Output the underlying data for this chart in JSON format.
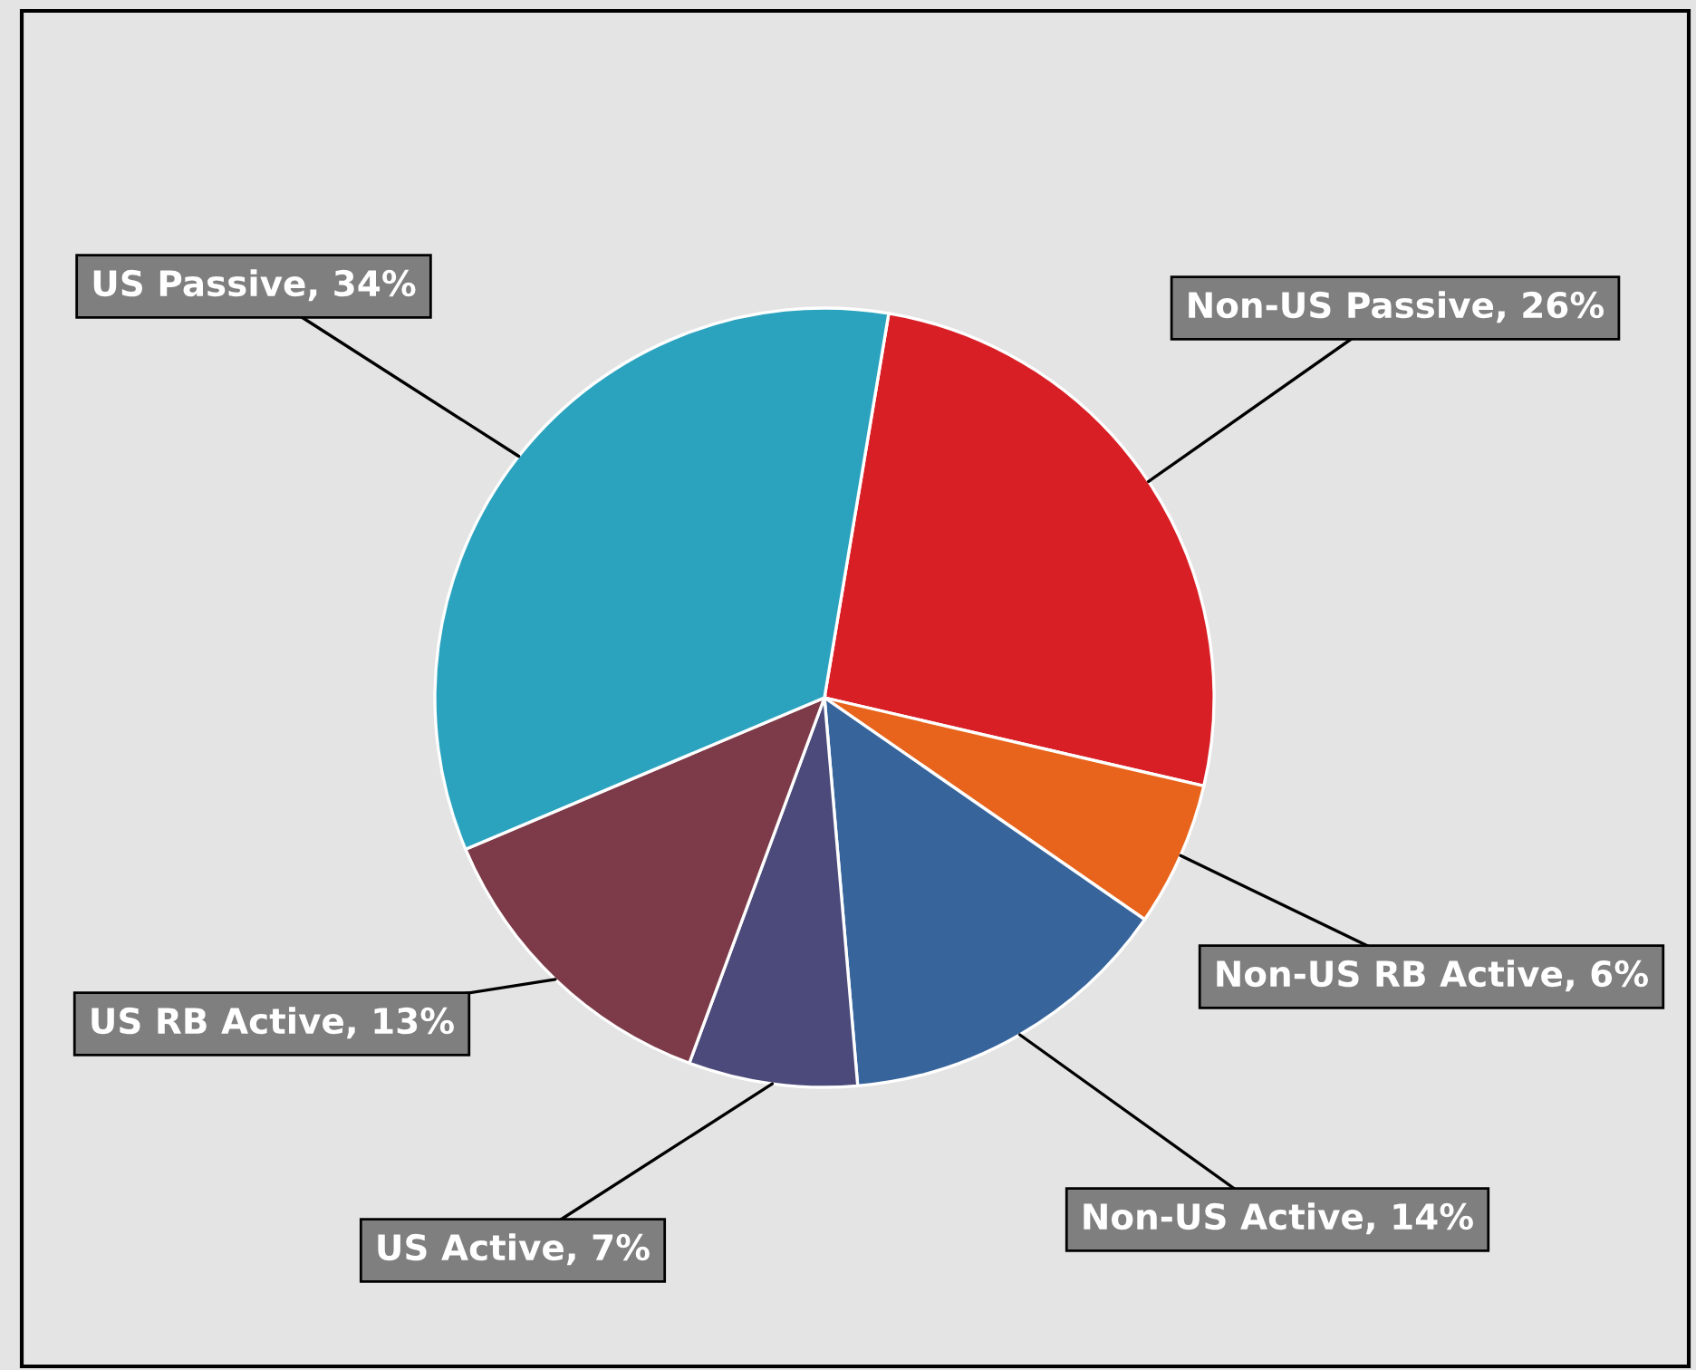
{
  "chart_data": {
    "type": "pie",
    "categories": [
      "Non-US Passive",
      "Non-US RB Active",
      "Non-US Active",
      "US Active",
      "US RB Active",
      "US Passive"
    ],
    "values": [
      26,
      6,
      14,
      7,
      13,
      34
    ],
    "value_labels": [
      "26%",
      "6%",
      "14%",
      "7%",
      "13%",
      "34%"
    ],
    "colors": [
      "#d91f26",
      "#e8641c",
      "#36649b",
      "#4b4a7a",
      "#7d3a48",
      "#2ba3bf"
    ]
  }
}
